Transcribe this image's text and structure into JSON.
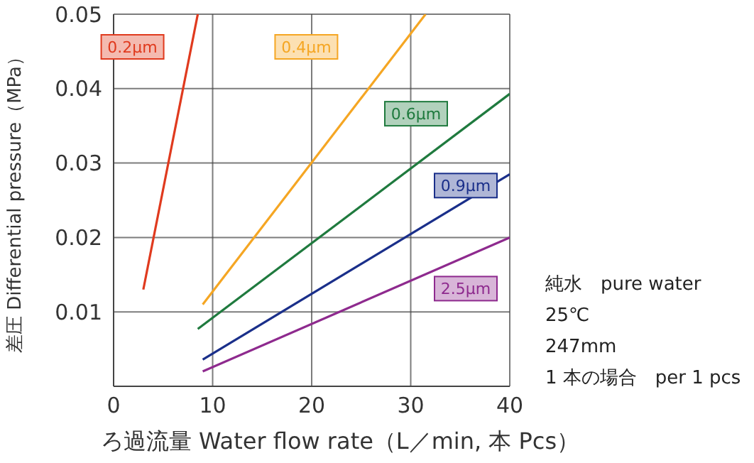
{
  "chart_data": {
    "type": "line",
    "xlabel": "ろ過流量 Water flow rate（L／min, 本 Pcs）",
    "ylabel": "差圧 Differential pressure（MPa）",
    "series": [
      {
        "name": "0.2μm",
        "color": "#e03a1e",
        "x": [
          3,
          8.5
        ],
        "values": [
          0.013,
          0.05
        ]
      },
      {
        "name": "0.4μm",
        "color": "#f5a623",
        "x": [
          9,
          31.5
        ],
        "values": [
          0.011,
          0.05
        ]
      },
      {
        "name": "0.6μm",
        "color": "#1f7a3e",
        "x": [
          8.5,
          40
        ],
        "values": [
          0.0077,
          0.0393
        ]
      },
      {
        "name": "0.9μm",
        "color": "#1a2f8a",
        "x": [
          9,
          40
        ],
        "values": [
          0.0036,
          0.0285
        ]
      },
      {
        "name": "2.5μm",
        "color": "#8e2a8e",
        "x": [
          9,
          40
        ],
        "values": [
          0.002,
          0.02
        ]
      }
    ],
    "xlim": [
      0,
      40
    ],
    "xticks": [
      0,
      10,
      20,
      30,
      40
    ],
    "ylim": [
      0,
      0.05
    ],
    "yticks": [
      0.01,
      0.02,
      0.03,
      0.04,
      0.05
    ],
    "grid": true,
    "legend": false,
    "marker": "none",
    "line_style": "solid",
    "annotations": [
      "純水　pure water",
      "25℃",
      "247mm",
      "1 本の場合　per 1 pcs"
    ]
  }
}
